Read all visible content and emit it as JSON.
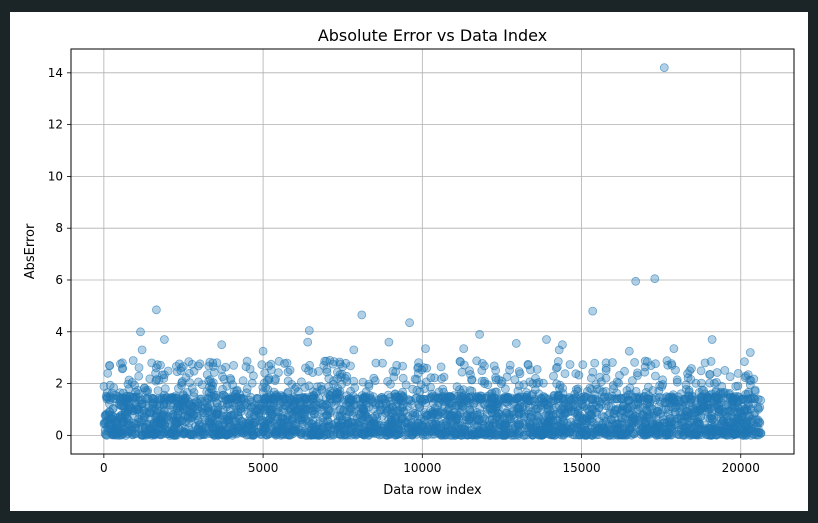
{
  "chart_data": {
    "type": "scatter",
    "title": "Absolute Error vs Data Index",
    "xlabel": "Data row index",
    "ylabel": "AbsError",
    "xlim": [
      -1032,
      21672
    ],
    "ylim": [
      -0.72,
      14.92
    ],
    "xticks": [
      0,
      5000,
      10000,
      15000,
      20000
    ],
    "yticks": [
      0,
      2,
      4,
      6,
      8,
      10,
      12,
      14
    ],
    "grid": true,
    "point_color": "#1f77b4",
    "point_alpha": 0.35,
    "n_points": 20640,
    "bulk_band": {
      "x_range": [
        0,
        20640
      ],
      "y_range": [
        0,
        1.5
      ]
    },
    "outliers": [
      {
        "x": 17600,
        "y": 14.2
      },
      {
        "x": 17300,
        "y": 6.05
      },
      {
        "x": 16700,
        "y": 5.95
      },
      {
        "x": 1650,
        "y": 4.85
      },
      {
        "x": 15350,
        "y": 4.8
      },
      {
        "x": 8100,
        "y": 4.65
      },
      {
        "x": 9600,
        "y": 4.35
      },
      {
        "x": 1150,
        "y": 4.0
      },
      {
        "x": 6450,
        "y": 4.05
      },
      {
        "x": 11800,
        "y": 3.9
      },
      {
        "x": 1900,
        "y": 3.7
      },
      {
        "x": 13900,
        "y": 3.7
      },
      {
        "x": 14400,
        "y": 3.5
      },
      {
        "x": 3700,
        "y": 3.5
      },
      {
        "x": 19100,
        "y": 3.7
      },
      {
        "x": 12950,
        "y": 3.55
      },
      {
        "x": 8950,
        "y": 3.6
      },
      {
        "x": 14300,
        "y": 3.3
      },
      {
        "x": 11300,
        "y": 3.35
      },
      {
        "x": 17900,
        "y": 3.35
      },
      {
        "x": 6400,
        "y": 3.6
      },
      {
        "x": 5000,
        "y": 3.25
      },
      {
        "x": 7850,
        "y": 3.3
      },
      {
        "x": 16500,
        "y": 3.25
      },
      {
        "x": 20300,
        "y": 3.2
      },
      {
        "x": 1200,
        "y": 3.3
      },
      {
        "x": 10100,
        "y": 3.35
      }
    ]
  }
}
